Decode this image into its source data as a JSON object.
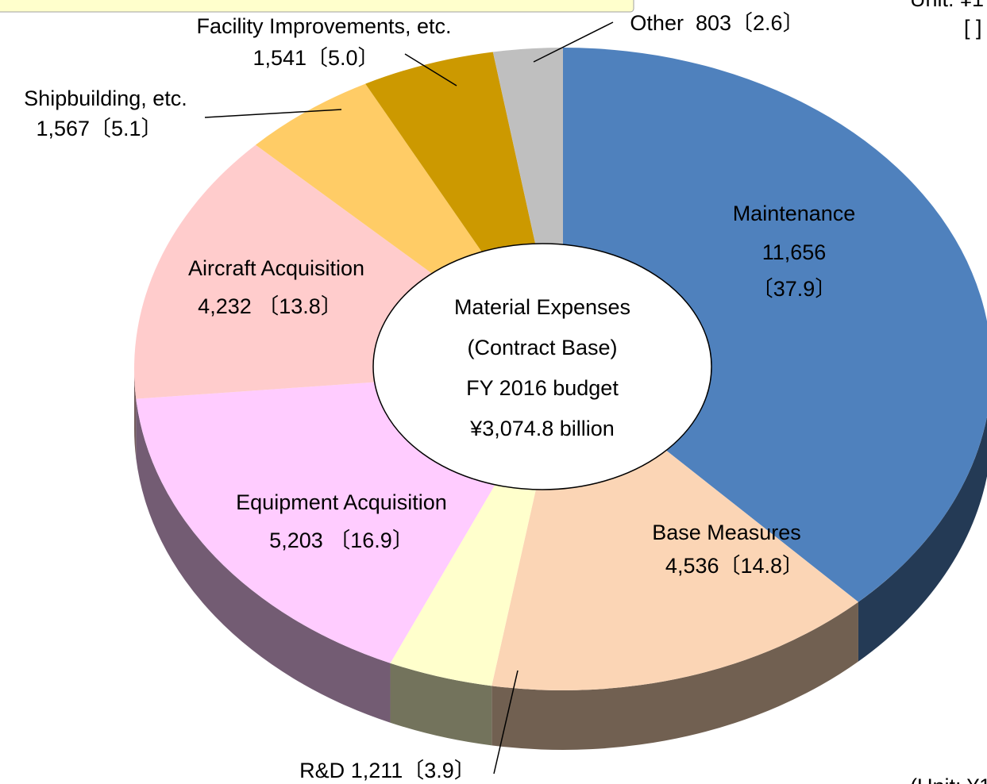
{
  "chart_data": {
    "type": "pie",
    "categories": [
      "Maintenance",
      "Base Measures",
      "R&D",
      "Equipment Acquisition",
      "Aircraft Acquisition",
      "Shipbuilding, etc.",
      "Facility Improvements, etc.",
      "Other"
    ],
    "values": [
      11656,
      4536,
      1211,
      5203,
      4232,
      1567,
      1541,
      803
    ],
    "value_labels": [
      "11,656",
      "4,536",
      "1,211",
      "5,203",
      "4,232",
      "1,567",
      "1,541",
      "803"
    ],
    "percentages": [
      37.9,
      14.8,
      3.9,
      16.9,
      13.8,
      5.1,
      5.0,
      2.6
    ],
    "percent_labels": [
      "〔37.9〕",
      "〔14.8〕",
      "〔3.9〕",
      "〔16.9〕",
      "〔13.8〕",
      "〔5.1〕",
      "〔5.0〕",
      "〔2.6〕"
    ],
    "colors": [
      "#4f81bd",
      "#fbd5b5",
      "#ffffcc",
      "#ffccff",
      "#ffcccc",
      "#ffcc66",
      "#cc9900",
      "#bfbfbf"
    ],
    "center_label": [
      "Material Expenses",
      "(Contract Base)",
      "FY 2016 budget",
      "¥3,074.8 billion"
    ],
    "annotations": [
      "Unit: ¥1",
      "[ ]",
      "(Unit: ¥1"
    ]
  }
}
